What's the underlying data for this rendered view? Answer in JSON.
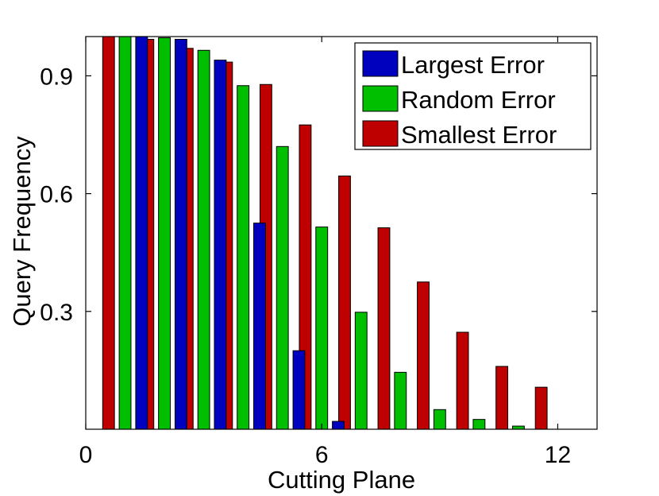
{
  "chart_data": {
    "type": "bar",
    "xlabel": "Cutting Plane",
    "ylabel": "Query Frequency",
    "xlim": [
      0,
      13
    ],
    "ylim": [
      0,
      1.0
    ],
    "xticks": [
      0,
      6,
      12
    ],
    "yticks": [
      0.3,
      0.6,
      0.9
    ],
    "ytick_labels": [
      "0.3",
      "0.6",
      "0.9"
    ],
    "xtick_labels": [
      "0",
      "6",
      "12"
    ],
    "grid": false,
    "legend_position": "top-right",
    "categories": [
      1,
      2,
      3,
      4,
      5,
      6,
      7,
      8,
      9,
      10,
      11,
      12
    ],
    "series": [
      {
        "name": "Largest Error",
        "color": "#0000bf",
        "values": [
          1.0,
          0.993,
          0.94,
          0.525,
          0.2,
          0.02,
          0,
          0,
          0,
          0,
          0,
          0
        ]
      },
      {
        "name": "Random Error",
        "color": "#00bf00",
        "values": [
          1.0,
          0.997,
          0.965,
          0.875,
          0.72,
          0.515,
          0.298,
          0.145,
          0.05,
          0.025,
          0.008,
          0
        ]
      },
      {
        "name": "Smallest Error",
        "color": "#bf0000",
        "values": [
          1.0,
          0.993,
          0.97,
          0.935,
          0.878,
          0.775,
          0.645,
          0.513,
          0.375,
          0.247,
          0.16,
          0.107
        ]
      }
    ]
  }
}
